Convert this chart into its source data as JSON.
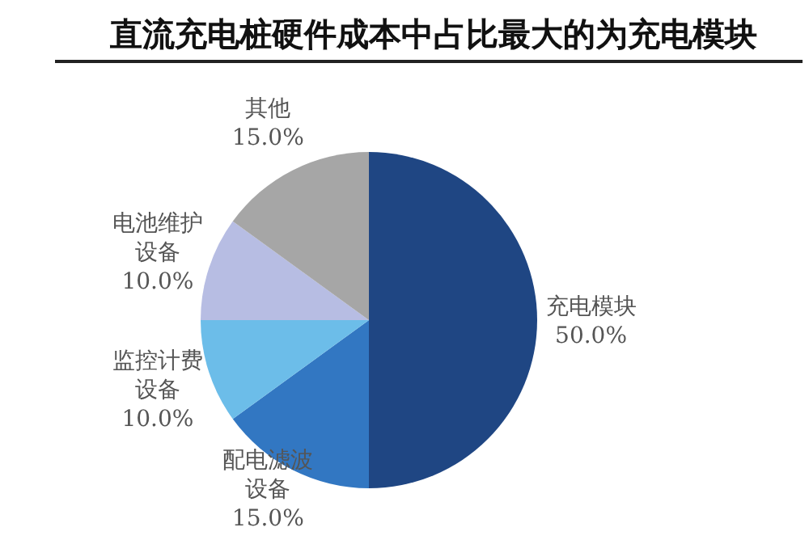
{
  "chart_data": {
    "type": "pie",
    "title": "直流充电桩硬件成本中占比最大的为充电模块",
    "categories": [
      "充电模块",
      "配电滤波设备",
      "监控计费设备",
      "电池维护设备",
      "其他"
    ],
    "values": [
      50.0,
      15.0,
      10.0,
      10.0,
      15.0
    ],
    "colors": [
      "#1f4683",
      "#3277c2",
      "#6cbde9",
      "#b7bde3",
      "#a6a6a6"
    ],
    "value_labels": [
      "50.0%",
      "15.0%",
      "10.0%",
      "10.0%",
      "15.0%"
    ]
  }
}
